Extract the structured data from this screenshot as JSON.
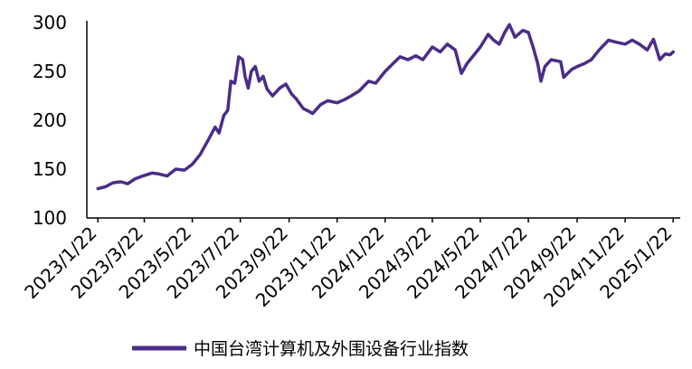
{
  "chart_data": {
    "type": "line",
    "title": "",
    "xlabel": "",
    "ylabel": "",
    "ylim": [
      100,
      300
    ],
    "yticks": [
      100,
      150,
      200,
      250,
      300
    ],
    "xlim": [
      "2023-01-08",
      "2025-01-31"
    ],
    "xticks": [
      "2023/1/22",
      "2023/3/22",
      "2023/5/22",
      "2023/7/22",
      "2023/9/22",
      "2023/11/22",
      "2024/1/22",
      "2024/3/22",
      "2024/5/22",
      "2024/7/22",
      "2024/9/22",
      "2024/11/22",
      "2025/1/22"
    ],
    "grid": false,
    "legend_position": "bottom",
    "colors": {
      "series": "#4B2C88",
      "axis": "#000000"
    },
    "series": [
      {
        "name": "中国台湾计算机及外围设备行业指数",
        "points": [
          [
            "2023-01-22",
            130
          ],
          [
            "2023-02-01",
            132
          ],
          [
            "2023-02-10",
            136
          ],
          [
            "2023-02-20",
            137
          ],
          [
            "2023-03-01",
            135
          ],
          [
            "2023-03-10",
            140
          ],
          [
            "2023-03-20",
            143
          ],
          [
            "2023-04-01",
            146
          ],
          [
            "2023-04-10",
            145
          ],
          [
            "2023-04-20",
            143
          ],
          [
            "2023-05-01",
            150
          ],
          [
            "2023-05-12",
            149
          ],
          [
            "2023-05-22",
            155
          ],
          [
            "2023-06-01",
            165
          ],
          [
            "2023-06-10",
            178
          ],
          [
            "2023-06-20",
            193
          ],
          [
            "2023-06-25",
            187
          ],
          [
            "2023-07-01",
            205
          ],
          [
            "2023-07-06",
            210
          ],
          [
            "2023-07-10",
            240
          ],
          [
            "2023-07-15",
            238
          ],
          [
            "2023-07-20",
            265
          ],
          [
            "2023-07-25",
            262
          ],
          [
            "2023-07-28",
            245
          ],
          [
            "2023-08-01",
            233
          ],
          [
            "2023-08-05",
            250
          ],
          [
            "2023-08-10",
            255
          ],
          [
            "2023-08-15",
            240
          ],
          [
            "2023-08-20",
            245
          ],
          [
            "2023-08-25",
            232
          ],
          [
            "2023-09-01",
            225
          ],
          [
            "2023-09-10",
            233
          ],
          [
            "2023-09-18",
            237
          ],
          [
            "2023-09-25",
            227
          ],
          [
            "2023-10-01",
            222
          ],
          [
            "2023-10-10",
            212
          ],
          [
            "2023-10-15",
            210
          ],
          [
            "2023-10-22",
            207
          ],
          [
            "2023-11-01",
            216
          ],
          [
            "2023-11-10",
            220
          ],
          [
            "2023-11-22",
            218
          ],
          [
            "2023-12-01",
            221
          ],
          [
            "2023-12-10",
            225
          ],
          [
            "2023-12-20",
            230
          ],
          [
            "2024-01-01",
            240
          ],
          [
            "2024-01-10",
            238
          ],
          [
            "2024-01-22",
            250
          ],
          [
            "2024-02-01",
            258
          ],
          [
            "2024-02-10",
            265
          ],
          [
            "2024-02-20",
            262
          ],
          [
            "2024-03-01",
            266
          ],
          [
            "2024-03-10",
            262
          ],
          [
            "2024-03-22",
            275
          ],
          [
            "2024-04-01",
            270
          ],
          [
            "2024-04-10",
            278
          ],
          [
            "2024-04-20",
            272
          ],
          [
            "2024-04-28",
            248
          ],
          [
            "2024-05-05",
            258
          ],
          [
            "2024-05-15",
            268
          ],
          [
            "2024-05-22",
            275
          ],
          [
            "2024-06-01",
            288
          ],
          [
            "2024-06-08",
            282
          ],
          [
            "2024-06-15",
            278
          ],
          [
            "2024-06-22",
            290
          ],
          [
            "2024-06-28",
            298
          ],
          [
            "2024-07-05",
            285
          ],
          [
            "2024-07-15",
            292
          ],
          [
            "2024-07-22",
            290
          ],
          [
            "2024-07-28",
            275
          ],
          [
            "2024-08-03",
            258
          ],
          [
            "2024-08-07",
            240
          ],
          [
            "2024-08-12",
            255
          ],
          [
            "2024-08-20",
            262
          ],
          [
            "2024-09-01",
            260
          ],
          [
            "2024-09-05",
            244
          ],
          [
            "2024-09-15",
            252
          ],
          [
            "2024-09-22",
            255
          ],
          [
            "2024-10-01",
            258
          ],
          [
            "2024-10-10",
            262
          ],
          [
            "2024-10-20",
            272
          ],
          [
            "2024-11-01",
            282
          ],
          [
            "2024-11-10",
            280
          ],
          [
            "2024-11-22",
            278
          ],
          [
            "2024-12-01",
            282
          ],
          [
            "2024-12-10",
            278
          ],
          [
            "2024-12-20",
            272
          ],
          [
            "2024-12-28",
            283
          ],
          [
            "2025-01-05",
            262
          ],
          [
            "2025-01-12",
            268
          ],
          [
            "2025-01-18",
            267
          ],
          [
            "2025-01-22",
            270
          ]
        ]
      }
    ]
  }
}
